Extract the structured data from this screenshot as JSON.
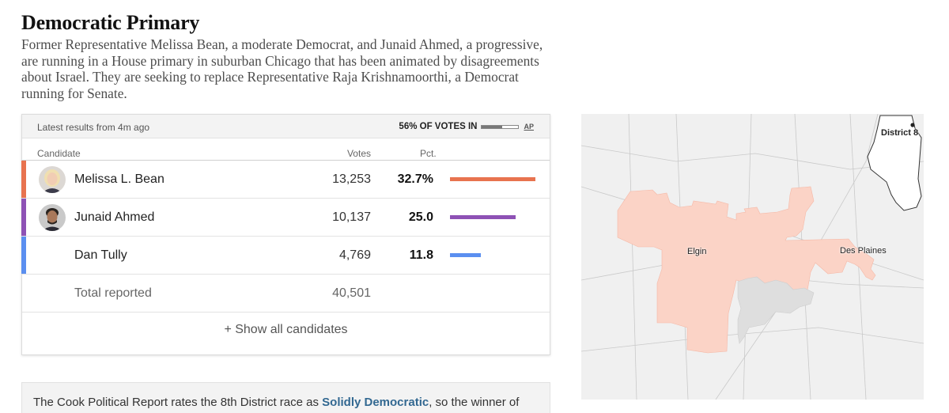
{
  "headline": "Democratic Primary",
  "intro": "Former Representative Melissa Bean, a moderate Democrat, and Junaid Ahmed, a progressive, are running in a House primary in suburban Chicago that has been animated by disagreements about Israel. They are seeking to replace Representative Raja Krishnamoorthi, a Democrat running for Senate.",
  "results": {
    "updated": "Latest results from 4m ago",
    "votes_in_label": "56% OF VOTES IN",
    "votes_in_fraction": 0.56,
    "source": "AP",
    "headers": {
      "candidate": "Candidate",
      "votes": "Votes",
      "pct": "Pct."
    },
    "candidates": [
      {
        "name": "Melissa L. Bean",
        "votes": "13,253",
        "pct": "32.7%",
        "pct_value": 32.7,
        "color": "#e8734f",
        "has_photo": true
      },
      {
        "name": "Junaid Ahmed",
        "votes": "10,137",
        "pct": "25.0",
        "pct_value": 25.0,
        "color": "#8e52b5",
        "has_photo": true
      },
      {
        "name": "Dan Tully",
        "votes": "4,769",
        "pct": "11.8",
        "pct_value": 11.8,
        "color": "#5b8ff0",
        "has_photo": false
      }
    ],
    "total_label": "Total reported",
    "total_votes": "40,501",
    "show_all": "+ Show all candidates"
  },
  "map": {
    "district_label": "District 8",
    "cities": [
      "Elgin",
      "Des Plaines"
    ],
    "district_color": "#fbd3c6",
    "unreported_color": "#dedede"
  },
  "note": {
    "before": "The Cook Political Report rates the 8th District race as ",
    "link": "Solidly Democratic",
    "after": ", so the winner of this"
  }
}
